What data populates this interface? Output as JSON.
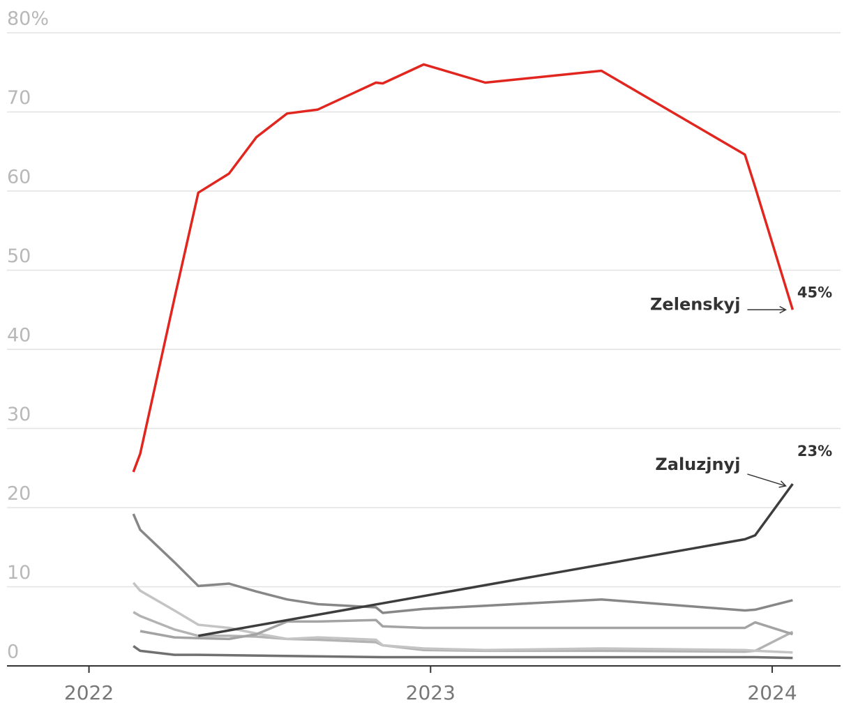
{
  "chart_data": {
    "type": "line",
    "xlim": [
      2021.76,
      2024.2
    ],
    "xticks": [
      2022,
      2023,
      2024
    ],
    "ylim": [
      0,
      80
    ],
    "yticks": [
      0,
      10,
      20,
      30,
      40,
      50,
      60,
      70,
      {
        "value": 80,
        "label": "80%"
      }
    ],
    "grid": true,
    "series": [
      {
        "name": "Zelenskyj",
        "color": "#e0261f",
        "x": [
          2022.13,
          2022.15,
          2022.25,
          2022.32,
          2022.41,
          2022.49,
          2022.58,
          2022.67,
          2022.84,
          2022.86,
          2022.98,
          2023.16,
          2023.5,
          2023.92,
          2023.95,
          2024.06
        ],
        "values": [
          24.5,
          26.8,
          46.4,
          59.8,
          62.2,
          66.8,
          69.8,
          70.3,
          73.7,
          73.6,
          76.0,
          73.7,
          75.2,
          64.6,
          60.5,
          45
        ],
        "value_labels": [
          null,
          null,
          null,
          null,
          null,
          null,
          null,
          null,
          null,
          null,
          null,
          null,
          null,
          null,
          null,
          "45%"
        ]
      },
      {
        "name": "Zaluzjnyj",
        "color": "#3d3d3d",
        "x": [
          2022.32,
          2023.92,
          2023.95,
          2024.06
        ],
        "values": [
          3.8,
          16.0,
          16.5,
          23
        ],
        "value_labels": [
          null,
          null,
          null,
          "23%"
        ]
      },
      {
        "color": "#878787",
        "x": [
          2022.13,
          2022.15,
          2022.25,
          2022.32,
          2022.41,
          2022.49,
          2022.58,
          2022.67,
          2022.84,
          2022.86,
          2022.98,
          2023.16,
          2023.5,
          2023.92,
          2023.95,
          2024.06
        ],
        "values": [
          19.2,
          17.2,
          13.1,
          10.1,
          10.4,
          9.4,
          8.4,
          7.8,
          7.4,
          6.7,
          7.2,
          7.6,
          8.4,
          7.0,
          7.1,
          8.3
        ]
      },
      {
        "color": "#a3a3a3",
        "x": [
          2022.15,
          2022.25,
          2022.32,
          2022.41,
          2022.49,
          2022.58,
          2022.67,
          2022.84,
          2022.86,
          2022.98,
          2023.16,
          2023.5,
          2023.92,
          2023.95,
          2024.06
        ],
        "values": [
          4.4,
          3.6,
          3.5,
          3.4,
          4.0,
          5.6,
          5.6,
          5.8,
          5.0,
          4.8,
          4.8,
          4.8,
          4.8,
          5.5,
          4.0
        ]
      },
      {
        "color": "#c4c4c4",
        "x": [
          2022.13,
          2022.15,
          2022.25,
          2022.32,
          2022.41,
          2022.49,
          2022.58,
          2022.67,
          2022.84,
          2022.86,
          2022.98,
          2023.16,
          2023.5,
          2023.92,
          2023.95,
          2024.06
        ],
        "values": [
          10.5,
          9.5,
          7.0,
          5.2,
          4.8,
          4.1,
          3.4,
          3.6,
          3.3,
          2.6,
          2.2,
          2.0,
          2.2,
          2.0,
          1.9,
          1.7
        ]
      },
      {
        "color": "#b3b3b3",
        "x": [
          2022.13,
          2022.15,
          2022.25,
          2022.32,
          2022.41,
          2022.49,
          2022.58,
          2022.67,
          2022.84,
          2022.86,
          2022.98,
          2023.16,
          2023.5,
          2023.92,
          2023.95,
          2024.06
        ],
        "values": [
          6.8,
          6.3,
          4.6,
          3.8,
          3.8,
          3.7,
          3.4,
          3.3,
          3.0,
          2.6,
          2.0,
          1.9,
          1.9,
          1.8,
          1.9,
          4.3
        ]
      },
      {
        "color": "#707070",
        "x": [
          2022.13,
          2022.15,
          2022.25,
          2022.32,
          2022.86,
          2023.95,
          2024.06
        ],
        "values": [
          2.5,
          1.9,
          1.4,
          1.4,
          1.1,
          1.1,
          1.0
        ]
      }
    ]
  }
}
